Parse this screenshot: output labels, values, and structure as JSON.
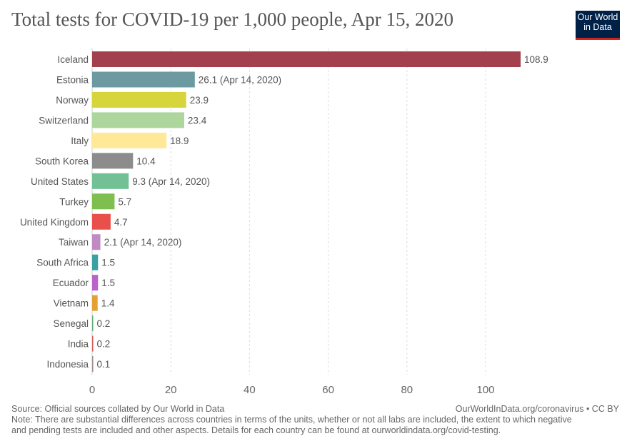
{
  "title": "Total tests for COVID-19 per 1,000 people, Apr 15, 2020",
  "logo": {
    "line1": "Our World",
    "line2": "in Data"
  },
  "footer": {
    "source": "Source: Official sources collated by Our World in Data",
    "url": "OurWorldInData.org/coronavirus • CC BY",
    "note1": "Note: There are substantial differences across countries in terms of the units, whether or not all labs are included, the extent to which negative",
    "note2": "and pending tests are included and other aspects. Details for each country can be found at ourworldindata.org/covid-testing."
  },
  "chart_data": {
    "type": "bar",
    "orientation": "horizontal",
    "title": "Total tests for COVID-19 per 1,000 people, Apr 15, 2020",
    "xlim": [
      0,
      110
    ],
    "xticks": [
      0,
      20,
      40,
      60,
      80,
      100
    ],
    "grid": "vertical dashed",
    "categories": [
      "Iceland",
      "Estonia",
      "Norway",
      "Switzerland",
      "Italy",
      "South Korea",
      "United States",
      "Turkey",
      "United Kingdom",
      "Taiwan",
      "South Africa",
      "Ecuador",
      "Vietnam",
      "Senegal",
      "India",
      "Indonesia"
    ],
    "values": [
      108.9,
      26.1,
      23.9,
      23.4,
      18.9,
      10.4,
      9.3,
      5.7,
      4.7,
      2.1,
      1.5,
      1.5,
      1.4,
      0.2,
      0.2,
      0.1
    ],
    "labels": [
      "108.9",
      "26.1 (Apr 14, 2020)",
      "23.9",
      "23.4",
      "18.9",
      "10.4",
      "9.3 (Apr 14, 2020)",
      "5.7",
      "4.7",
      "2.1 (Apr 14, 2020)",
      "1.5",
      "1.5",
      "1.4",
      "0.2",
      "0.2",
      "0.1"
    ],
    "colors": [
      "#a2404e",
      "#6d9aa0",
      "#d6d63c",
      "#acd69c",
      "#ffe998",
      "#8c8c8c",
      "#72c194",
      "#7ebf4f",
      "#e94f4b",
      "#c08bc4",
      "#3aa0a4",
      "#b964c9",
      "#e3a033",
      "#5fae72",
      "#d55a5a",
      "#a08a8a"
    ]
  }
}
